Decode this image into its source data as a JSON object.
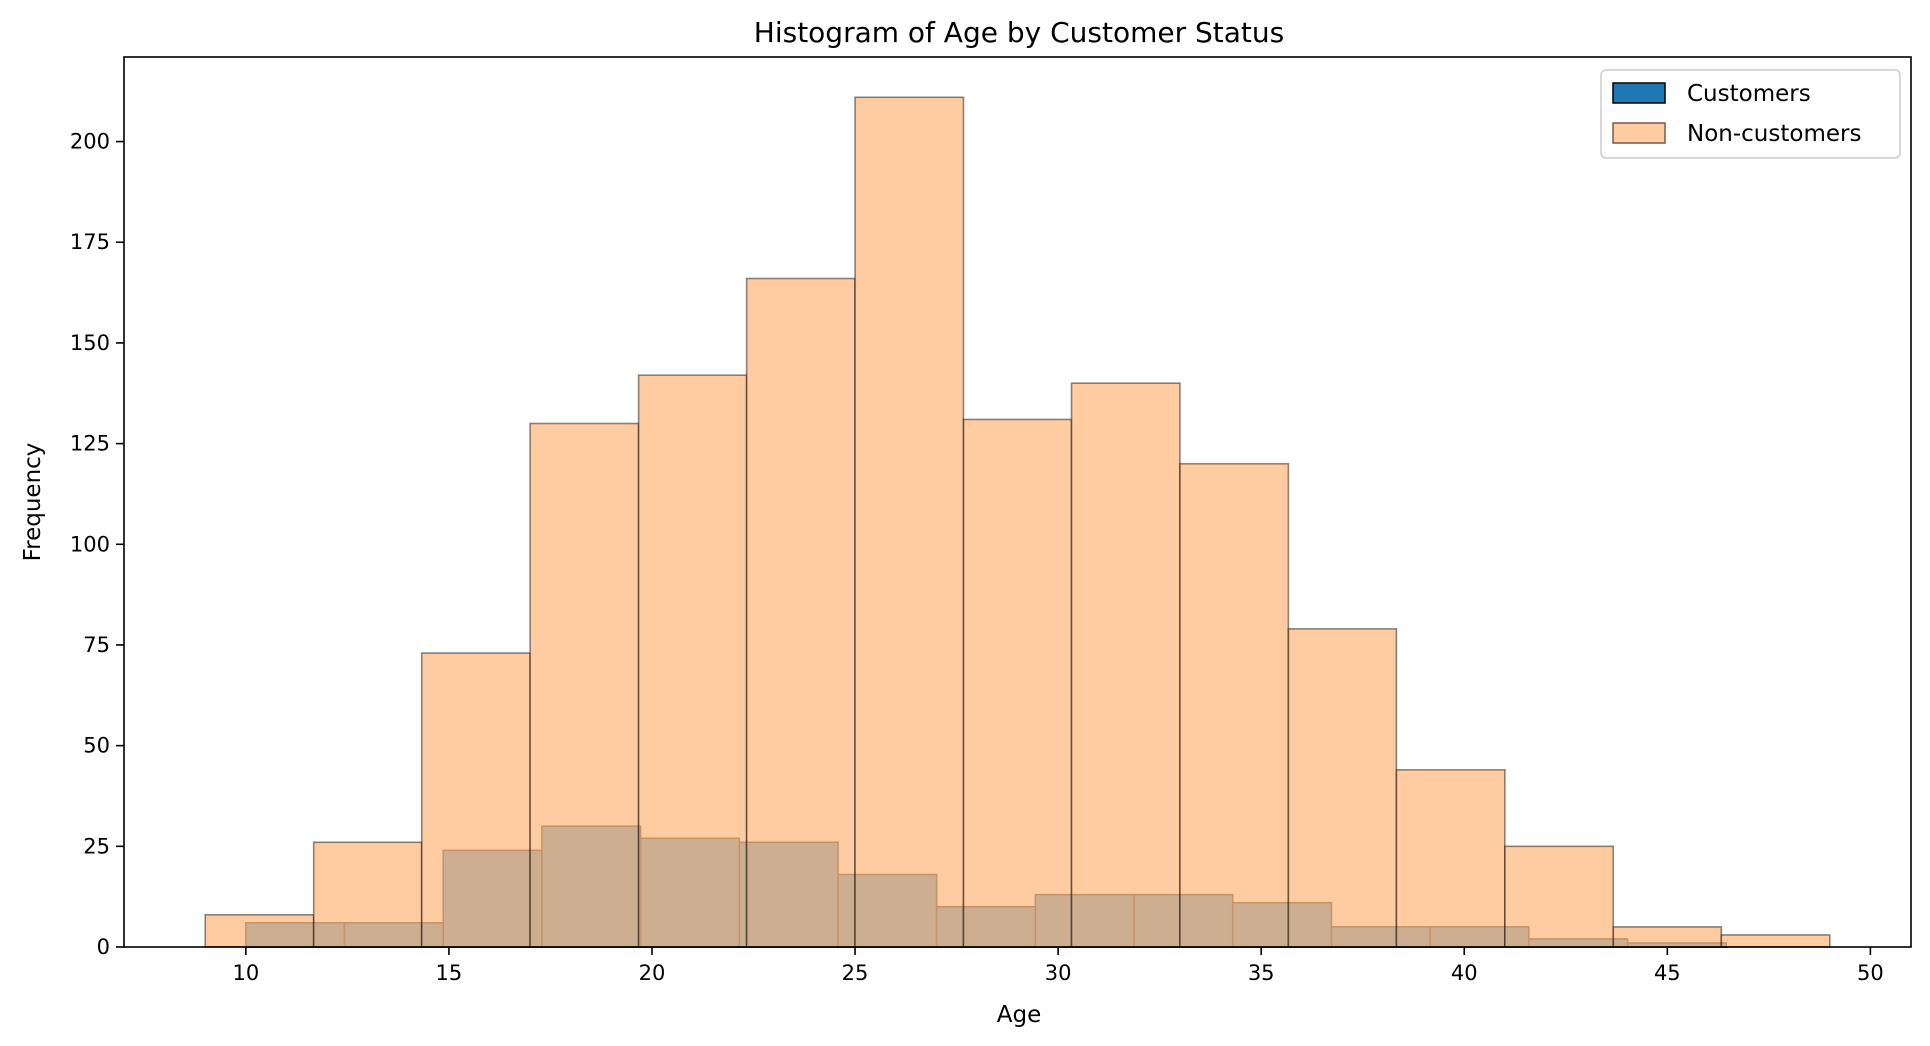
{
  "chart_data": {
    "type": "bar",
    "title": "Histogram of Age by Customer Status",
    "xlabel": "Age",
    "ylabel": "Frequency",
    "xlim": [
      7,
      51
    ],
    "ylim": [
      0,
      221
    ],
    "xticks": [
      10,
      15,
      20,
      25,
      30,
      35,
      40,
      45,
      50
    ],
    "yticks": [
      0,
      25,
      50,
      75,
      100,
      125,
      150,
      175,
      200
    ],
    "legend_position": "top-right",
    "grid": false,
    "series": [
      {
        "name": "Customers",
        "color": "#1f77b4",
        "bin_edges": [
          10.0,
          12.43,
          14.86,
          17.29,
          19.72,
          22.15,
          24.58,
          27.01,
          29.44,
          31.87,
          34.3,
          36.73,
          39.16,
          41.59,
          44.02,
          46.45
        ],
        "values": [
          6,
          6,
          24,
          30,
          27,
          26,
          18,
          10,
          13,
          13,
          11,
          5,
          5,
          2,
          1
        ]
      },
      {
        "name": "Non-customers",
        "color": "#ffbe86",
        "bin_edges": [
          9.0,
          11.67,
          14.33,
          17.0,
          19.67,
          22.33,
          25.0,
          27.67,
          30.33,
          33.0,
          35.67,
          38.33,
          41.0,
          43.67,
          46.33,
          49.0
        ],
        "values": [
          8,
          26,
          73,
          130,
          142,
          166,
          211,
          131,
          140,
          120,
          79,
          44,
          25,
          5,
          3
        ]
      }
    ]
  }
}
